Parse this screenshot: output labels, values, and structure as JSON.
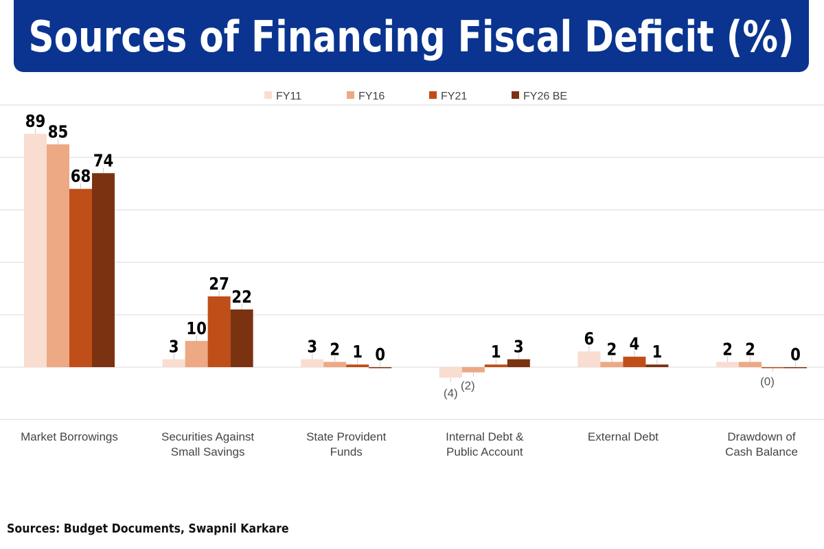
{
  "title": "Sources of Financing Fiscal Deficit (%)",
  "source": "Sources: Budget Documents, Swapnil Karkare",
  "chart_data": {
    "type": "bar",
    "title": "Sources of Financing Fiscal Deficit (%)",
    "xlabel": "",
    "ylabel": "",
    "ylim": [
      -20,
      100
    ],
    "grid": true,
    "legend": "top-center",
    "categories": [
      [
        "Market Borrowings"
      ],
      [
        "Securities Against",
        "Small Savings"
      ],
      [
        "State Provident",
        "Funds"
      ],
      [
        "Internal Debt &",
        "Public Account"
      ],
      [
        "External Debt"
      ],
      [
        "Drawdown of",
        "Cash Balance"
      ]
    ],
    "series": [
      {
        "name": "FY11",
        "color": "#f9ddd0",
        "values": [
          89,
          3,
          3,
          -4,
          6,
          2
        ],
        "labels": [
          "89",
          "3",
          "3",
          "(4)",
          "6",
          "2"
        ]
      },
      {
        "name": "FY16",
        "color": "#eda884",
        "values": [
          85,
          10,
          2,
          -2,
          2,
          2
        ],
        "labels": [
          "85",
          "10",
          "2",
          "(2)",
          "2",
          "2"
        ]
      },
      {
        "name": "FY21",
        "color": "#c04e18",
        "values": [
          68,
          27,
          1,
          1,
          4,
          -0.3
        ],
        "labels": [
          "68",
          "27",
          "1",
          "1",
          "4",
          "(0)"
        ]
      },
      {
        "name": "FY26 BE",
        "color": "#7b3210",
        "values": [
          74,
          22,
          0,
          3,
          1,
          0
        ],
        "labels": [
          "74",
          "22",
          "0",
          "3",
          "1",
          "0"
        ]
      }
    ]
  }
}
